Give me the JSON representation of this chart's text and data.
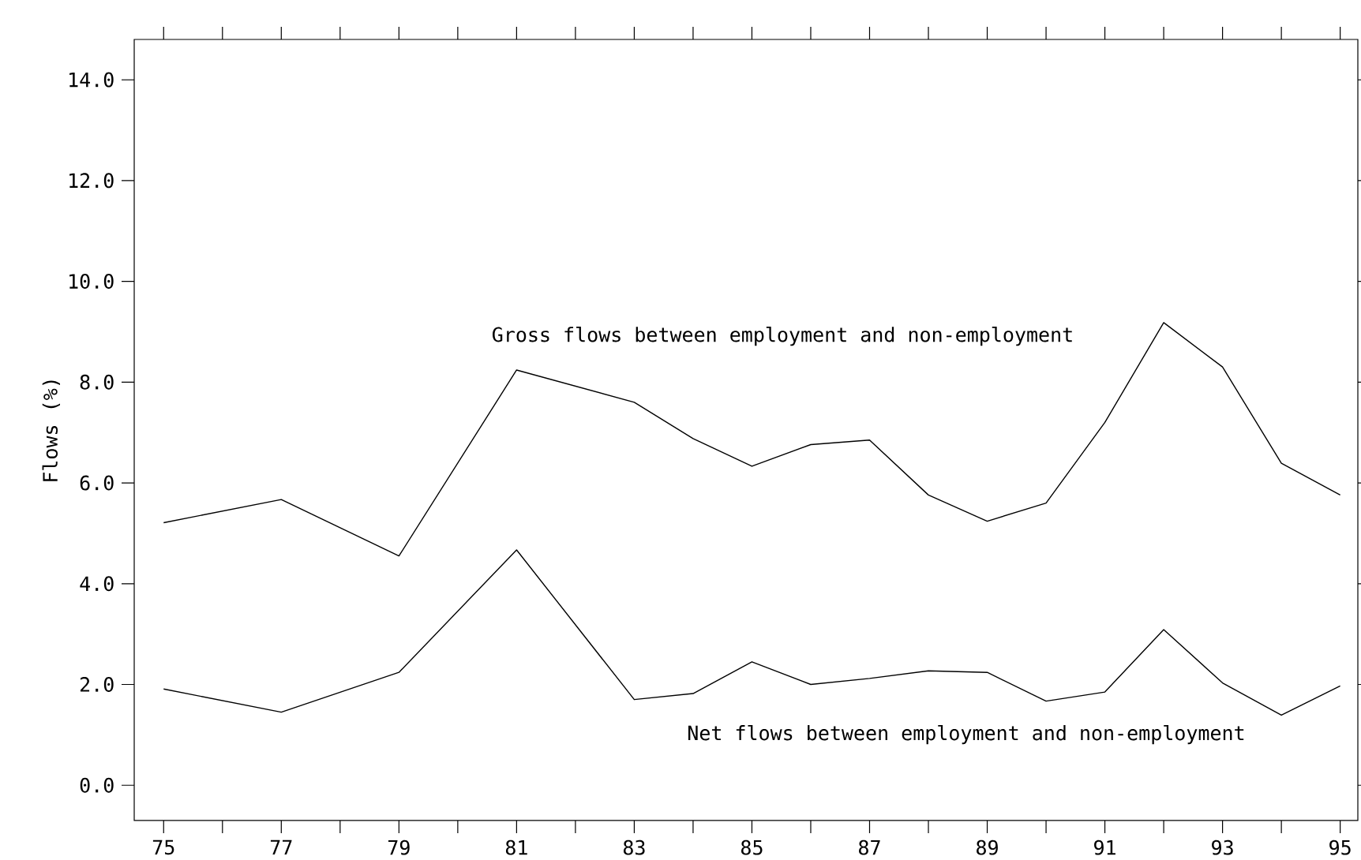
{
  "chart_data": {
    "type": "line",
    "ylabel": "Flows (%)",
    "x": [
      75,
      77,
      79,
      81,
      83,
      84,
      85,
      86,
      87,
      88,
      89,
      90,
      91,
      92,
      93,
      94,
      95
    ],
    "series": [
      {
        "name": "Gross flows between employment and non-employment",
        "color": "#000000",
        "values": [
          5.21,
          5.67,
          4.55,
          8.24,
          7.6,
          6.88,
          6.33,
          6.76,
          6.85,
          5.76,
          5.24,
          5.6,
          7.2,
          9.18,
          8.3,
          6.39,
          5.76
        ]
      },
      {
        "name": "Net flows between employment and non-employment",
        "color": "#000000",
        "values": [
          1.91,
          1.45,
          2.24,
          4.67,
          1.7,
          1.82,
          2.45,
          2.0,
          2.12,
          2.27,
          2.24,
          1.67,
          1.85,
          3.09,
          2.03,
          1.39,
          1.97
        ]
      }
    ],
    "xlim": [
      74.5,
      95.3
    ],
    "ylim": [
      -0.7,
      14.8
    ],
    "xticks": [
      75,
      {
        "value": 76,
        "label": null
      },
      77,
      {
        "value": 78,
        "label": null
      },
      79,
      {
        "value": 80,
        "label": null
      },
      81,
      {
        "value": 82,
        "label": null
      },
      83,
      {
        "value": 84,
        "label": null
      },
      85,
      {
        "value": 86,
        "label": null
      },
      87,
      {
        "value": 88,
        "label": null
      },
      89,
      {
        "value": 90,
        "label": null
      },
      91,
      {
        "value": 92,
        "label": null
      },
      93,
      {
        "value": 94,
        "label": null
      },
      95
    ],
    "yticks": [
      {
        "value": 0,
        "label": "0.0"
      },
      {
        "value": 2,
        "label": "2.0"
      },
      {
        "value": 4,
        "label": "4.0"
      },
      {
        "value": 6,
        "label": "6.0"
      },
      {
        "value": 8,
        "label": "8.0"
      },
      {
        "value": 10,
        "label": "10.0"
      },
      {
        "value": 12,
        "label": "12.0"
      },
      {
        "value": 14,
        "label": "14.0"
      }
    ]
  }
}
